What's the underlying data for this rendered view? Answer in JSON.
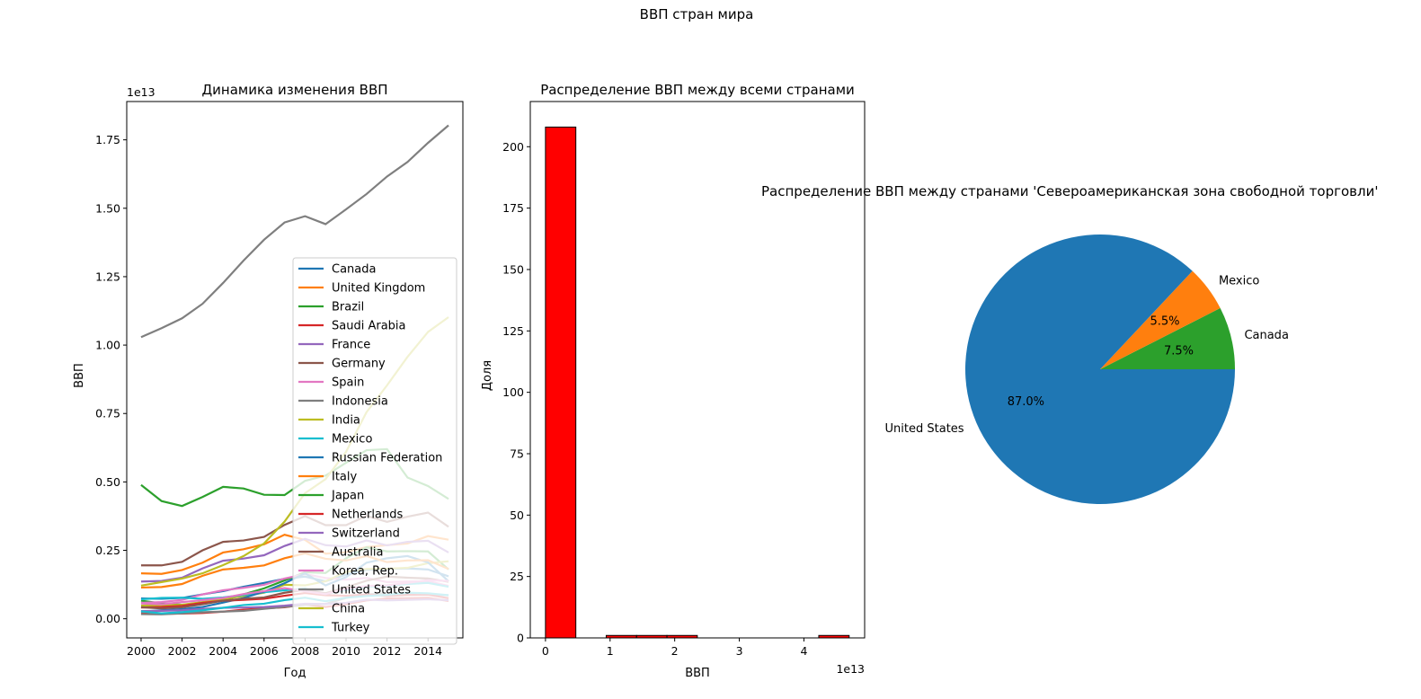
{
  "figure": {
    "suptitle": "ВВП стран мира"
  },
  "chart_data": [
    {
      "type": "line",
      "title": "Динамика изменения ВВП",
      "xlabel": "Год",
      "ylabel": "ВВП",
      "y_offset_label": "1e13",
      "xlim": [
        1999.3,
        2015.7
      ],
      "ylim": [
        -0.07,
        1.89
      ],
      "y_unit_factor": 10000000000000.0,
      "xticks": [
        2000,
        2002,
        2004,
        2006,
        2008,
        2010,
        2012,
        2014
      ],
      "yticks": [
        0.0,
        0.25,
        0.5,
        0.75,
        1.0,
        1.25,
        1.5,
        1.75
      ],
      "ytick_labels": [
        "0.00",
        "0.25",
        "0.50",
        "0.75",
        "1.00",
        "1.25",
        "1.50",
        "1.75"
      ],
      "legend_position": "lower-right",
      "x": [
        2000,
        2001,
        2002,
        2003,
        2004,
        2005,
        2006,
        2007,
        2008,
        2009,
        2010,
        2011,
        2012,
        2013,
        2014,
        2015
      ],
      "series": [
        {
          "name": "Canada",
          "color": "#1f77b4",
          "values": [
            0.074,
            0.073,
            0.076,
            0.089,
            0.101,
            0.117,
            0.131,
            0.146,
            0.154,
            0.137,
            0.161,
            0.179,
            0.182,
            0.184,
            0.18,
            0.155
          ]
        },
        {
          "name": "United Kingdom",
          "color": "#ff7f0e",
          "values": [
            0.166,
            0.164,
            0.178,
            0.205,
            0.242,
            0.254,
            0.272,
            0.307,
            0.288,
            0.238,
            0.243,
            0.262,
            0.269,
            0.275,
            0.302,
            0.289
          ]
        },
        {
          "name": "Brazil",
          "color": "#2ca02c",
          "values": [
            0.066,
            0.056,
            0.051,
            0.056,
            0.067,
            0.089,
            0.111,
            0.14,
            0.17,
            0.167,
            0.221,
            0.261,
            0.246,
            0.247,
            0.246,
            0.18
          ]
        },
        {
          "name": "Saudi Arabia",
          "color": "#d62728",
          "values": [
            0.019,
            0.018,
            0.019,
            0.021,
            0.026,
            0.033,
            0.038,
            0.042,
            0.052,
            0.043,
            0.053,
            0.067,
            0.074,
            0.075,
            0.076,
            0.065
          ]
        },
        {
          "name": "France",
          "color": "#9467bd",
          "values": [
            0.136,
            0.138,
            0.15,
            0.184,
            0.212,
            0.22,
            0.232,
            0.266,
            0.292,
            0.269,
            0.264,
            0.286,
            0.268,
            0.281,
            0.285,
            0.242
          ]
        },
        {
          "name": "Germany",
          "color": "#8c564b",
          "values": [
            0.195,
            0.195,
            0.208,
            0.25,
            0.281,
            0.286,
            0.299,
            0.343,
            0.375,
            0.342,
            0.342,
            0.376,
            0.354,
            0.373,
            0.388,
            0.336
          ]
        },
        {
          "name": "Spain",
          "color": "#e377c2",
          "values": [
            0.058,
            0.061,
            0.069,
            0.089,
            0.104,
            0.113,
            0.124,
            0.147,
            0.163,
            0.149,
            0.143,
            0.149,
            0.134,
            0.136,
            0.137,
            0.12
          ]
        },
        {
          "name": "Indonesia",
          "color": "#7f7f7f",
          "values": [
            0.017,
            0.016,
            0.02,
            0.024,
            0.026,
            0.029,
            0.036,
            0.043,
            0.051,
            0.054,
            0.076,
            0.089,
            0.092,
            0.091,
            0.089,
            0.086
          ]
        },
        {
          "name": "India",
          "color": "#bcbd22",
          "values": [
            0.048,
            0.049,
            0.051,
            0.061,
            0.072,
            0.083,
            0.095,
            0.124,
            0.122,
            0.137,
            0.171,
            0.182,
            0.183,
            0.186,
            0.203,
            0.21
          ]
        },
        {
          "name": "Mexico",
          "color": "#17becf",
          "values": [
            0.071,
            0.076,
            0.077,
            0.073,
            0.078,
            0.087,
            0.097,
            0.104,
            0.11,
            0.09,
            0.105,
            0.117,
            0.12,
            0.127,
            0.131,
            0.117
          ]
        },
        {
          "name": "Russian Federation",
          "color": "#1f77b4",
          "values": [
            0.026,
            0.031,
            0.035,
            0.043,
            0.059,
            0.076,
            0.099,
            0.13,
            0.166,
            0.122,
            0.152,
            0.205,
            0.221,
            0.229,
            0.206,
            0.137
          ]
        },
        {
          "name": "Italy",
          "color": "#ff7f0e",
          "values": [
            0.114,
            0.116,
            0.127,
            0.157,
            0.18,
            0.186,
            0.195,
            0.221,
            0.239,
            0.219,
            0.213,
            0.229,
            0.207,
            0.213,
            0.214,
            0.182
          ]
        },
        {
          "name": "Japan",
          "color": "#2ca02c",
          "values": [
            0.489,
            0.43,
            0.412,
            0.445,
            0.482,
            0.476,
            0.453,
            0.452,
            0.504,
            0.523,
            0.57,
            0.616,
            0.62,
            0.516,
            0.485,
            0.438
          ]
        },
        {
          "name": "Netherlands",
          "color": "#d62728",
          "values": [
            0.041,
            0.043,
            0.047,
            0.058,
            0.066,
            0.069,
            0.073,
            0.084,
            0.094,
            0.086,
            0.084,
            0.089,
            0.083,
            0.087,
            0.088,
            0.075
          ]
        },
        {
          "name": "Switzerland",
          "color": "#9467bd",
          "values": [
            0.028,
            0.029,
            0.031,
            0.036,
            0.04,
            0.041,
            0.043,
            0.048,
            0.055,
            0.054,
            0.058,
            0.07,
            0.067,
            0.069,
            0.071,
            0.068
          ]
        },
        {
          "name": "Australia",
          "color": "#8c564b",
          "values": [
            0.042,
            0.038,
            0.042,
            0.053,
            0.066,
            0.073,
            0.078,
            0.095,
            0.106,
            0.093,
            0.115,
            0.139,
            0.154,
            0.15,
            0.147,
            0.135
          ]
        },
        {
          "name": "Korea, Rep.",
          "color": "#e377c2",
          "values": [
            0.056,
            0.053,
            0.061,
            0.068,
            0.076,
            0.09,
            0.101,
            0.112,
            0.1,
            0.09,
            0.109,
            0.12,
            0.122,
            0.131,
            0.141,
            0.138
          ]
        },
        {
          "name": "United States",
          "color": "#7f7f7f",
          "values": [
            1.029,
            1.062,
            1.098,
            1.151,
            1.227,
            1.309,
            1.385,
            1.448,
            1.471,
            1.442,
            1.496,
            1.552,
            1.616,
            1.669,
            1.739,
            1.803
          ]
        },
        {
          "name": "China",
          "color": "#bcbd22",
          "values": [
            0.121,
            0.134,
            0.147,
            0.166,
            0.196,
            0.229,
            0.275,
            0.355,
            0.459,
            0.51,
            0.61,
            0.755,
            0.853,
            0.957,
            1.048,
            1.102
          ]
        },
        {
          "name": "Turkey",
          "color": "#17becf",
          "values": [
            0.027,
            0.02,
            0.024,
            0.031,
            0.04,
            0.05,
            0.055,
            0.068,
            0.077,
            0.064,
            0.077,
            0.083,
            0.087,
            0.095,
            0.093,
            0.086
          ]
        }
      ]
    },
    {
      "type": "bar",
      "subtype": "histogram",
      "title": "Распределение ВВП между всеми странами",
      "xlabel": "ВВП",
      "ylabel": "Доля",
      "x_offset_label": "1e13",
      "xlim": [
        -0.235,
        4.94
      ],
      "ylim": [
        0,
        218.4
      ],
      "xticks": [
        0,
        1,
        2,
        3,
        4
      ],
      "yticks": [
        0,
        25,
        50,
        75,
        100,
        125,
        150,
        175,
        200
      ],
      "bar_color": "#ff0000",
      "edge_color": "#000000",
      "bin_edges": [
        0.0,
        0.47,
        0.94,
        1.41,
        1.88,
        2.35,
        2.82,
        3.29,
        3.76,
        4.23,
        4.7
      ],
      "counts": [
        208,
        0,
        1,
        1,
        1,
        0,
        0,
        0,
        0,
        1
      ]
    },
    {
      "type": "pie",
      "title": "Распределение ВВП между странами 'Североамериканская зона свободной торговли'",
      "labels": [
        "Canada",
        "Mexico",
        "United States"
      ],
      "values": [
        7.5,
        5.5,
        87.0
      ],
      "pct_labels": [
        "7.5%",
        "5.5%",
        "87.0%"
      ],
      "colors": [
        "#2ca02c",
        "#ff7f0e",
        "#1f77b4"
      ]
    }
  ]
}
